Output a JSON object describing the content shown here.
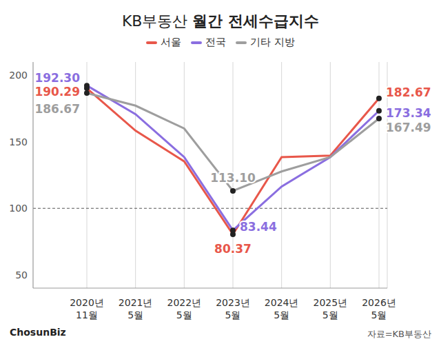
{
  "chart_data": {
    "type": "line",
    "title": "KB부동산 월간 전세수급지수",
    "source": "자료=KB부동산",
    "credit": "ChosunBiz",
    "categories": [
      "2020년\n11월",
      "2021년\n5월",
      "2022년\n5월",
      "2023년\n5월",
      "2024년\n5월",
      "2025년\n5월",
      "2026년\n5월"
    ],
    "series": [
      {
        "name": "서울",
        "color": "#e8574a",
        "values": [
          190.29,
          158.4,
          135.3,
          80.37,
          138.5,
          139.6,
          182.67
        ],
        "value_labels": [
          "190.29",
          null,
          null,
          "80.37",
          null,
          null,
          "182.67"
        ]
      },
      {
        "name": "전국",
        "color": "#8a6ee0",
        "values": [
          192.3,
          170.8,
          138.5,
          83.44,
          116.4,
          138.5,
          173.34
        ],
        "value_labels": [
          "192.30",
          null,
          null,
          "83.44",
          null,
          null,
          "173.34"
        ]
      },
      {
        "name": "기타 지방",
        "color": "#9e9e9e",
        "values": [
          186.67,
          177.2,
          160.0,
          113.1,
          127.7,
          138.5,
          167.49
        ],
        "value_labels": [
          "186.67",
          null,
          null,
          "113.10",
          null,
          null,
          "167.49"
        ]
      }
    ],
    "ylim": [
      40,
      210
    ],
    "yticks": [
      50,
      100,
      150,
      200
    ],
    "grid": true,
    "data_labels": true,
    "legend": "top"
  }
}
